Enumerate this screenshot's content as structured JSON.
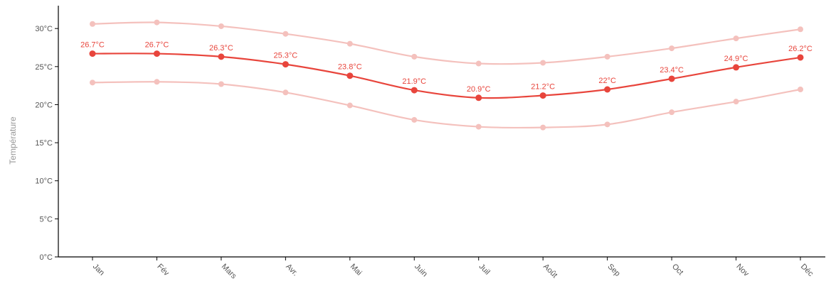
{
  "chart_data": {
    "type": "line",
    "title": "",
    "xlabel": "",
    "ylabel": "Température",
    "categories": [
      "Jan",
      "Fév",
      "Mars",
      "Avr.",
      "Mai",
      "Juin",
      "Juil",
      "Août",
      "Sep",
      "Oct",
      "Nov",
      "Déc"
    ],
    "ylim": [
      0,
      33
    ],
    "yticks": [
      "0°C",
      "5°C",
      "10°C",
      "15°C",
      "20°C",
      "25°C",
      "30°C"
    ],
    "ytick_values": [
      0,
      5,
      10,
      15,
      20,
      25,
      30
    ],
    "grid": false,
    "series": [
      {
        "role": "max",
        "values": [
          30.6,
          30.8,
          30.3,
          29.3,
          28.0,
          26.3,
          25.4,
          25.5,
          26.3,
          27.4,
          28.7,
          29.9
        ],
        "color": "#f4c1bd",
        "labels": []
      },
      {
        "role": "mean",
        "values": [
          26.7,
          26.7,
          26.3,
          25.3,
          23.8,
          21.9,
          20.9,
          21.2,
          22.0,
          23.4,
          24.9,
          26.2
        ],
        "color": "#e8453c",
        "labels": [
          "26.7°C",
          "26.7°C",
          "26.3°C",
          "25.3°C",
          "23.8°C",
          "21.9°C",
          "20.9°C",
          "21.2°C",
          "22°C",
          "23.4°C",
          "24.9°C",
          "26.2°C"
        ]
      },
      {
        "role": "min",
        "values": [
          22.9,
          23.0,
          22.7,
          21.6,
          19.9,
          18.0,
          17.1,
          17.0,
          17.4,
          19.0,
          20.4,
          22.0
        ],
        "color": "#f4c1bd",
        "labels": []
      }
    ]
  }
}
